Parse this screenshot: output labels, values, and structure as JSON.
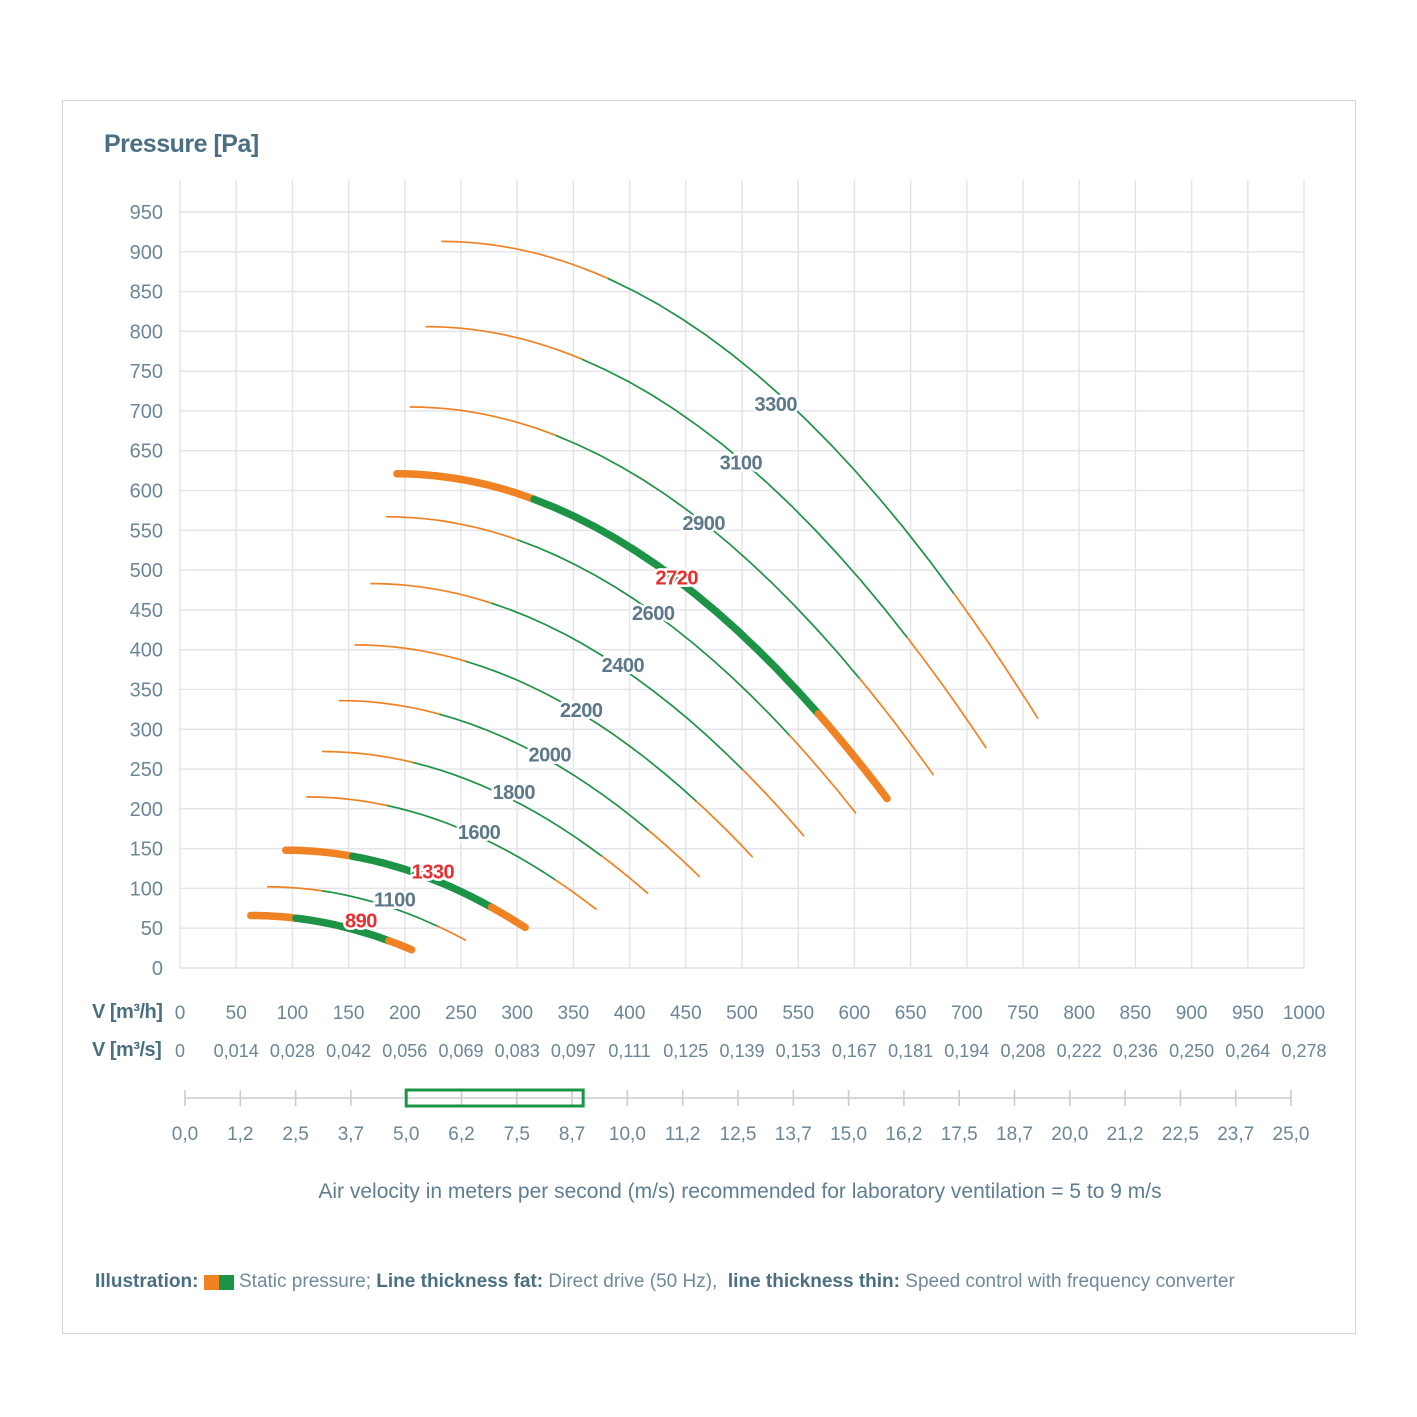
{
  "figure": {
    "title": "Pressure [Pa]",
    "caption": "Air velocity in meters per second (m/s) recommended for laboratory ventilation = 5 to 9 m/s",
    "legend": {
      "prefix": "Illustration: ",
      "swatch_text": " Static pressure; ",
      "fat_label": "Line thickness fat: ",
      "fat_text": "Direct drive (50 Hz),  ",
      "thin_label": "line thickness thin: ",
      "thin_text": "Speed control with frequency converter"
    },
    "colors": {
      "orange": "#F08223",
      "green": "#1D9346",
      "red": "#E63030",
      "tick_text": "#6B8697",
      "curve_label_text": "#5D7888",
      "bold_text": "#4A6E82",
      "grid": "#E3E3E9",
      "axis_line": "#C9CCD2"
    }
  },
  "chart_data": {
    "type": "line",
    "title": "Pressure [Pa]",
    "ylabel": "Pressure [Pa]",
    "y_axis": {
      "min": 0,
      "max": 950,
      "step": 50,
      "grid": true
    },
    "x_axis_m3h": {
      "label": "V [m³/h]",
      "ticks": [
        0,
        50,
        100,
        150,
        200,
        250,
        300,
        350,
        400,
        450,
        500,
        550,
        600,
        650,
        700,
        750,
        800,
        850,
        900,
        950,
        1000
      ]
    },
    "x_axis_m3s": {
      "label": "V [m³/s]",
      "tick_labels": [
        "0",
        "0,014",
        "0,028",
        "0,042",
        "0,056",
        "0,069",
        "0,083",
        "0,097",
        "0,111",
        "0,125",
        "0,139",
        "0,153",
        "0,167",
        "0,181",
        "0,194",
        "0,208",
        "0,222",
        "0,236",
        "0,250",
        "0,264",
        "0,278"
      ]
    },
    "velocity_axis": {
      "unit": "m/s",
      "min": 0,
      "max": 25,
      "step": 1.25,
      "tick_labels": [
        "0,0",
        "1,2",
        "2,5",
        "3,7",
        "5,0",
        "6,2",
        "7,5",
        "8,7",
        "10,0",
        "11,2",
        "12,5",
        "13,7",
        "15,0",
        "16,2",
        "17,5",
        "18,7",
        "20,0",
        "21,2",
        "22,5",
        "23,7",
        "25,0"
      ],
      "highlight_range": [
        5,
        9
      ]
    },
    "segment_fractions": {
      "green_from": 0.28,
      "green_to": 0.86
    },
    "curves": [
      {
        "rpm": "3300",
        "v_start": 233,
        "v_end": 763,
        "p_start": 913,
        "p_end": 314,
        "thick": false,
        "label_red": false,
        "label_v": 530,
        "label_p": 709
      },
      {
        "rpm": "3100",
        "v_start": 219,
        "v_end": 717,
        "p_start": 806,
        "p_end": 277,
        "thick": false,
        "label_red": false,
        "label_v": 499,
        "label_p": 635
      },
      {
        "rpm": "2900",
        "v_start": 205,
        "v_end": 670,
        "p_start": 705,
        "p_end": 243,
        "thick": false,
        "label_red": false,
        "label_v": 466,
        "label_p": 559
      },
      {
        "rpm": "2720",
        "v_start": 193,
        "v_end": 629,
        "p_start": 621,
        "p_end": 213,
        "thick": true,
        "label_red": true,
        "label_v": 442,
        "label_p": 491
      },
      {
        "rpm": "2600",
        "v_start": 184,
        "v_end": 601,
        "p_start": 567,
        "p_end": 195,
        "thick": false,
        "label_red": false,
        "label_v": 421,
        "label_p": 446
      },
      {
        "rpm": "2400",
        "v_start": 170,
        "v_end": 555,
        "p_start": 483,
        "p_end": 166,
        "thick": false,
        "label_red": false,
        "label_v": 394,
        "label_p": 381
      },
      {
        "rpm": "2200",
        "v_start": 156,
        "v_end": 509,
        "p_start": 406,
        "p_end": 140,
        "thick": false,
        "label_red": false,
        "label_v": 357,
        "label_p": 324
      },
      {
        "rpm": "2000",
        "v_start": 142,
        "v_end": 462,
        "p_start": 336,
        "p_end": 115,
        "thick": false,
        "label_red": false,
        "label_v": 329,
        "label_p": 268
      },
      {
        "rpm": "1800",
        "v_start": 127,
        "v_end": 416,
        "p_start": 272,
        "p_end": 94,
        "thick": false,
        "label_red": false,
        "label_v": 297,
        "label_p": 221
      },
      {
        "rpm": "1600",
        "v_start": 113,
        "v_end": 370,
        "p_start": 215,
        "p_end": 74,
        "thick": false,
        "label_red": false,
        "label_v": 266,
        "label_p": 171
      },
      {
        "rpm": "1330",
        "v_start": 94,
        "v_end": 307,
        "p_start": 148,
        "p_end": 51,
        "thick": true,
        "label_red": true,
        "label_v": 225,
        "label_p": 121
      },
      {
        "rpm": "1100",
        "v_start": 78,
        "v_end": 254,
        "p_start": 102,
        "p_end": 35,
        "thick": false,
        "label_red": false,
        "label_v": 191,
        "label_p": 86
      },
      {
        "rpm": "890",
        "v_start": 63,
        "v_end": 206,
        "p_start": 66,
        "p_end": 23,
        "thick": true,
        "label_red": true,
        "label_v": 161,
        "label_p": 60
      }
    ]
  }
}
